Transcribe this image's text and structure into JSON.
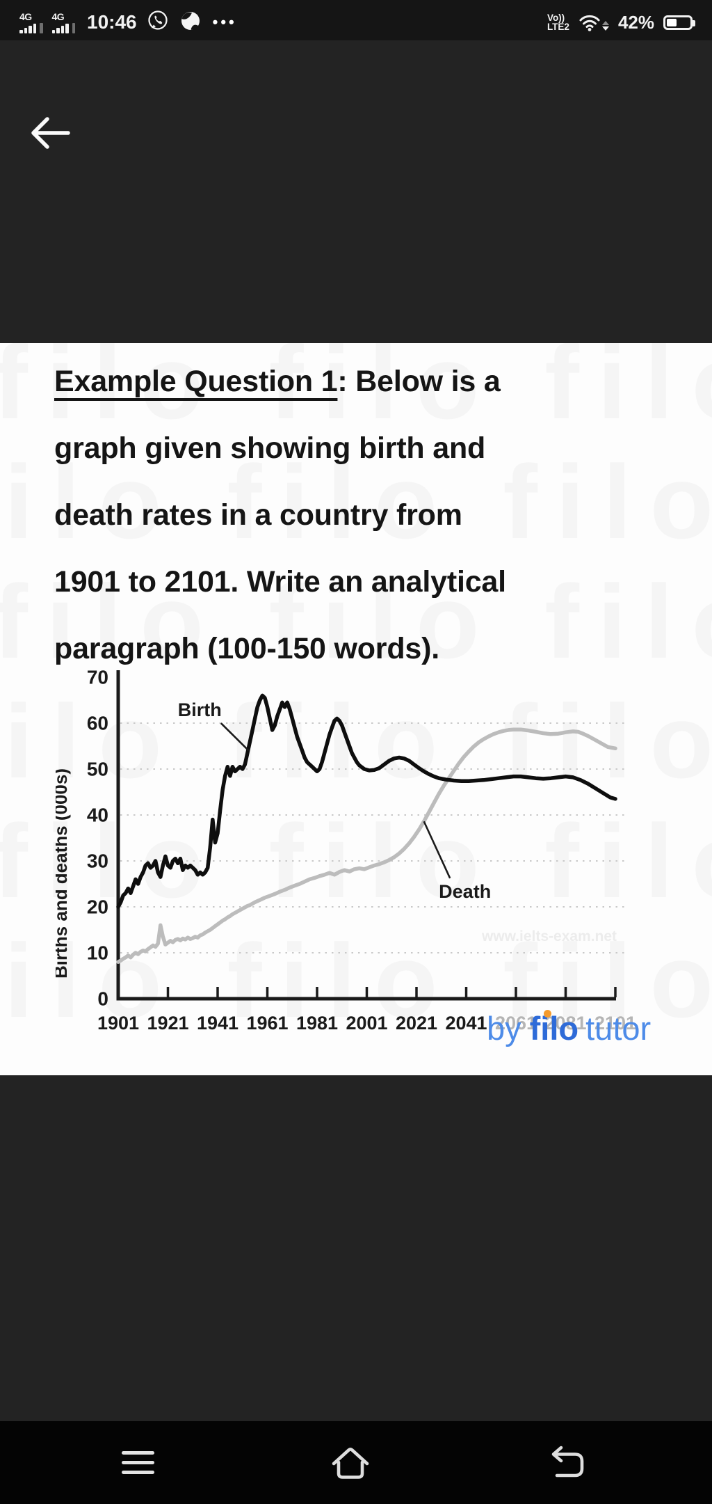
{
  "status_bar": {
    "network_badge": "4G",
    "time": "10:46",
    "more_glyph": "•••",
    "volte_line1": "Vo))",
    "volte_line2": "LTE2",
    "battery_percent": "42%",
    "icons": {
      "signal": "signal-bars-4g",
      "whatsapp": "whatsapp-bubble-icon",
      "browser_ball": "swirl-ball-icon",
      "more": "ellipsis-icon",
      "wifi": "wifi-icon",
      "battery": "battery-icon"
    }
  },
  "app_bar": {
    "back_icon": "arrow-left"
  },
  "question": {
    "heading_underlined": "Example Question 1",
    "line1_rest": ": Below is a",
    "lines": [
      "graph given showing birth and",
      "death rates in a country from",
      "1901 to 2101. Write an analytical",
      "paragraph (100-150 words)."
    ]
  },
  "chart_data": {
    "type": "line",
    "title": "",
    "xlabel": "",
    "ylabel": "Births and deaths (000s)",
    "xlim": [
      1901,
      2101
    ],
    "ylim": [
      0,
      70
    ],
    "x_ticks": [
      1901,
      1921,
      1941,
      1961,
      1981,
      2001,
      2021,
      2041,
      2061,
      2081,
      2101
    ],
    "x_ticks_faded_from": 2061,
    "y_ticks": [
      0,
      10,
      20,
      30,
      40,
      50,
      60,
      70
    ],
    "grid_values": [
      10,
      20,
      30,
      40,
      50,
      60
    ],
    "grid_style": "dotted",
    "legend_position": "annotations-on-plot",
    "watermark": "www.ielts-exam.net",
    "annotations": [
      {
        "text": "Birth",
        "label_at": {
          "year": 1925,
          "value": 61.5
        },
        "arrow_to": {
          "year": 1953.5,
          "value": 54
        }
      },
      {
        "text": "Death",
        "label_at": {
          "year": 2030,
          "value": 22
        },
        "arrow_to": {
          "year": 2024,
          "value": 38.6
        }
      }
    ],
    "series": [
      {
        "name": "Birth",
        "color": "#0e0e0e",
        "points": [
          [
            1901,
            20
          ],
          [
            1902,
            21
          ],
          [
            1903,
            22.5
          ],
          [
            1904,
            23
          ],
          [
            1905,
            24
          ],
          [
            1906,
            23
          ],
          [
            1907,
            24.5
          ],
          [
            1908,
            26
          ],
          [
            1909,
            25
          ],
          [
            1910,
            26.5
          ],
          [
            1911,
            27.5
          ],
          [
            1912,
            29
          ],
          [
            1913,
            29.5
          ],
          [
            1914,
            28.5
          ],
          [
            1915,
            29
          ],
          [
            1916,
            30
          ],
          [
            1917,
            27.5
          ],
          [
            1918,
            26.5
          ],
          [
            1919,
            29
          ],
          [
            1920,
            31
          ],
          [
            1921,
            29
          ],
          [
            1922,
            28.5
          ],
          [
            1923,
            30
          ],
          [
            1924,
            30.5
          ],
          [
            1925,
            29.5
          ],
          [
            1926,
            30.5
          ],
          [
            1927,
            28
          ],
          [
            1928,
            29
          ],
          [
            1929,
            28.5
          ],
          [
            1930,
            29
          ],
          [
            1931,
            28.5
          ],
          [
            1932,
            28
          ],
          [
            1933,
            27
          ],
          [
            1934,
            27.5
          ],
          [
            1935,
            27
          ],
          [
            1936,
            27.5
          ],
          [
            1937,
            28.5
          ],
          [
            1938,
            33
          ],
          [
            1939,
            39
          ],
          [
            1940,
            34
          ],
          [
            1941,
            36
          ],
          [
            1942,
            41
          ],
          [
            1943,
            45.5
          ],
          [
            1944,
            48.5
          ],
          [
            1945,
            50.5
          ],
          [
            1946,
            48.5
          ],
          [
            1947,
            50.5
          ],
          [
            1948,
            49.5
          ],
          [
            1949,
            50
          ],
          [
            1950,
            50.5
          ],
          [
            1951,
            50
          ],
          [
            1952,
            51
          ],
          [
            1953,
            53.5
          ],
          [
            1954,
            56
          ],
          [
            1955,
            58.5
          ],
          [
            1956,
            61
          ],
          [
            1957,
            63.5
          ],
          [
            1958,
            65
          ],
          [
            1959,
            66
          ],
          [
            1960,
            65.5
          ],
          [
            1961,
            63.5
          ],
          [
            1962,
            61
          ],
          [
            1963,
            58.5
          ],
          [
            1964,
            59.5
          ],
          [
            1965,
            61.5
          ],
          [
            1966,
            63
          ],
          [
            1967,
            64.5
          ],
          [
            1968,
            63.5
          ],
          [
            1969,
            64.5
          ],
          [
            1970,
            63
          ],
          [
            1971,
            61
          ],
          [
            1972,
            59
          ],
          [
            1973,
            57
          ],
          [
            1974,
            55.5
          ],
          [
            1975,
            54
          ],
          [
            1976,
            52.5
          ],
          [
            1977,
            51.5
          ],
          [
            1978,
            51
          ],
          [
            1979,
            50.5
          ],
          [
            1980,
            50
          ],
          [
            1981,
            49.5
          ],
          [
            1982,
            50
          ],
          [
            1983,
            51.5
          ],
          [
            1984,
            53.5
          ],
          [
            1985,
            55.5
          ],
          [
            1986,
            57.5
          ],
          [
            1987,
            59
          ],
          [
            1988,
            60.5
          ],
          [
            1989,
            61
          ],
          [
            1990,
            60.5
          ],
          [
            1991,
            59.5
          ],
          [
            1992,
            58
          ],
          [
            1993,
            56.5
          ],
          [
            1994,
            55
          ],
          [
            1995,
            53.5
          ],
          [
            1996,
            52.5
          ],
          [
            1997,
            51.5
          ],
          [
            1998,
            50.8
          ],
          [
            2000,
            50
          ],
          [
            2002,
            49.7
          ],
          [
            2004,
            49.8
          ],
          [
            2006,
            50.2
          ],
          [
            2008,
            51
          ],
          [
            2010,
            51.8
          ],
          [
            2012,
            52.3
          ],
          [
            2014,
            52.5
          ],
          [
            2016,
            52.3
          ],
          [
            2018,
            51.8
          ],
          [
            2020,
            51
          ],
          [
            2022,
            50.2
          ],
          [
            2024,
            49.5
          ],
          [
            2026,
            48.9
          ],
          [
            2028,
            48.4
          ],
          [
            2030,
            48
          ],
          [
            2033,
            47.7
          ],
          [
            2036,
            47.5
          ],
          [
            2039,
            47.4
          ],
          [
            2042,
            47.4
          ],
          [
            2045,
            47.5
          ],
          [
            2048,
            47.6
          ],
          [
            2051,
            47.8
          ],
          [
            2054,
            48
          ],
          [
            2057,
            48.2
          ],
          [
            2060,
            48.4
          ],
          [
            2063,
            48.4
          ],
          [
            2066,
            48.2
          ],
          [
            2069,
            48
          ],
          [
            2072,
            47.9
          ],
          [
            2075,
            48
          ],
          [
            2078,
            48.2
          ],
          [
            2081,
            48.4
          ],
          [
            2084,
            48.2
          ],
          [
            2087,
            47.6
          ],
          [
            2090,
            46.8
          ],
          [
            2093,
            45.8
          ],
          [
            2096,
            44.8
          ],
          [
            2099,
            43.8
          ],
          [
            2101,
            43.5
          ]
        ]
      },
      {
        "name": "Death",
        "color": "#bcbcbc",
        "points": [
          [
            1901,
            8
          ],
          [
            1902,
            8.3
          ],
          [
            1903,
            8.7
          ],
          [
            1904,
            9
          ],
          [
            1905,
            9.4
          ],
          [
            1906,
            9
          ],
          [
            1907,
            9.6
          ],
          [
            1908,
            10
          ],
          [
            1909,
            9.7
          ],
          [
            1910,
            10.2
          ],
          [
            1911,
            10.5
          ],
          [
            1912,
            10.3
          ],
          [
            1913,
            10.8
          ],
          [
            1914,
            11.2
          ],
          [
            1915,
            11.6
          ],
          [
            1916,
            11.3
          ],
          [
            1917,
            12
          ],
          [
            1918,
            16
          ],
          [
            1919,
            13.5
          ],
          [
            1920,
            11.8
          ],
          [
            1921,
            12.2
          ],
          [
            1922,
            12.6
          ],
          [
            1923,
            12.3
          ],
          [
            1924,
            12.8
          ],
          [
            1925,
            13
          ],
          [
            1926,
            12.7
          ],
          [
            1927,
            13.1
          ],
          [
            1928,
            12.9
          ],
          [
            1929,
            13.3
          ],
          [
            1930,
            13
          ],
          [
            1931,
            13.2
          ],
          [
            1932,
            13.5
          ],
          [
            1933,
            13.3
          ],
          [
            1934,
            13.8
          ],
          [
            1935,
            14
          ],
          [
            1936,
            14.4
          ],
          [
            1937,
            14.7
          ],
          [
            1938,
            15
          ],
          [
            1939,
            15.4
          ],
          [
            1940,
            15.8
          ],
          [
            1941,
            16.2
          ],
          [
            1942,
            16.6
          ],
          [
            1943,
            17
          ],
          [
            1944,
            17.3
          ],
          [
            1945,
            17.7
          ],
          [
            1946,
            18
          ],
          [
            1947,
            18.4
          ],
          [
            1948,
            18.7
          ],
          [
            1949,
            19
          ],
          [
            1950,
            19.3
          ],
          [
            1951,
            19.6
          ],
          [
            1952,
            19.9
          ],
          [
            1953,
            20.2
          ],
          [
            1954,
            20.4
          ],
          [
            1955,
            20.7
          ],
          [
            1956,
            21
          ],
          [
            1958,
            21.5
          ],
          [
            1960,
            22
          ],
          [
            1962,
            22.4
          ],
          [
            1964,
            22.8
          ],
          [
            1966,
            23.3
          ],
          [
            1968,
            23.7
          ],
          [
            1970,
            24.2
          ],
          [
            1972,
            24.6
          ],
          [
            1974,
            25
          ],
          [
            1976,
            25.5
          ],
          [
            1978,
            26
          ],
          [
            1980,
            26.3
          ],
          [
            1982,
            26.7
          ],
          [
            1984,
            27
          ],
          [
            1986,
            27.4
          ],
          [
            1988,
            27
          ],
          [
            1990,
            27.6
          ],
          [
            1992,
            28
          ],
          [
            1994,
            27.7
          ],
          [
            1996,
            28.2
          ],
          [
            1998,
            28.4
          ],
          [
            2000,
            28.2
          ],
          [
            2002,
            28.6
          ],
          [
            2004,
            29
          ],
          [
            2006,
            29.3
          ],
          [
            2008,
            29.7
          ],
          [
            2010,
            30.2
          ],
          [
            2012,
            30.8
          ],
          [
            2014,
            31.6
          ],
          [
            2016,
            32.6
          ],
          [
            2018,
            33.8
          ],
          [
            2020,
            35.2
          ],
          [
            2022,
            36.8
          ],
          [
            2024,
            38.6
          ],
          [
            2026,
            40.6
          ],
          [
            2028,
            42.6
          ],
          [
            2030,
            44.6
          ],
          [
            2032,
            46.4
          ],
          [
            2034,
            48
          ],
          [
            2036,
            49.6
          ],
          [
            2038,
            51.2
          ],
          [
            2040,
            52.6
          ],
          [
            2042,
            53.8
          ],
          [
            2044,
            54.9
          ],
          [
            2046,
            55.8
          ],
          [
            2048,
            56.5
          ],
          [
            2050,
            57.1
          ],
          [
            2052,
            57.6
          ],
          [
            2054,
            58
          ],
          [
            2056,
            58.3
          ],
          [
            2058,
            58.5
          ],
          [
            2060,
            58.6
          ],
          [
            2063,
            58.6
          ],
          [
            2066,
            58.4
          ],
          [
            2069,
            58.1
          ],
          [
            2072,
            57.8
          ],
          [
            2075,
            57.6
          ],
          [
            2078,
            57.7
          ],
          [
            2081,
            58
          ],
          [
            2084,
            58.2
          ],
          [
            2086,
            58.1
          ],
          [
            2088,
            57.7
          ],
          [
            2090,
            57.2
          ],
          [
            2092,
            56.6
          ],
          [
            2094,
            56
          ],
          [
            2096,
            55.4
          ],
          [
            2098,
            54.8
          ],
          [
            2101,
            54.5
          ]
        ]
      }
    ]
  },
  "branding": {
    "by": "by",
    "brand": "filo",
    "suffix": "tutor"
  },
  "watermark": {
    "text": "filo",
    "repeat_per_row": 5,
    "rows": 6
  },
  "nav_bar": {
    "icons": {
      "menu": "hamburger-icon",
      "home": "home-icon",
      "back": "return-arrow-icon"
    }
  }
}
